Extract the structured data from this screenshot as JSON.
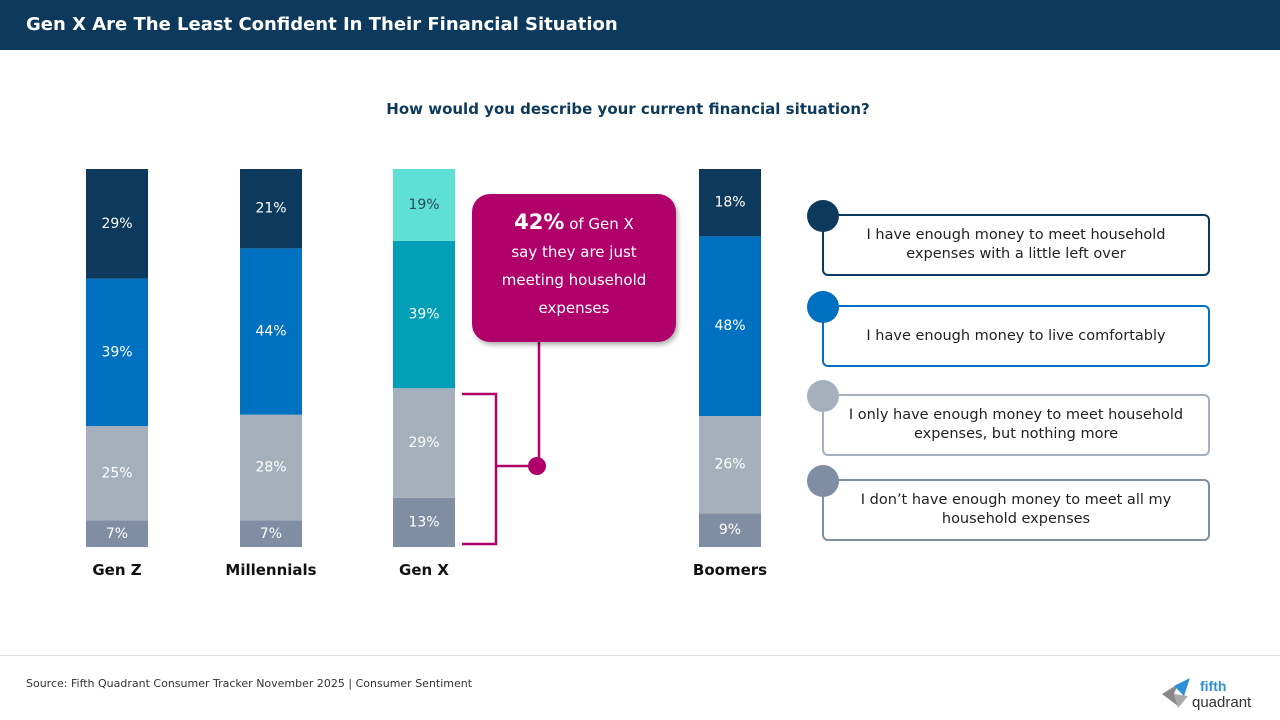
{
  "header": {
    "title": "Gen X Are The Least Confident In Their Financial Situation"
  },
  "chart_data": {
    "type": "bar",
    "stacked": true,
    "title": "How would you describe your current financial situation?",
    "categories": [
      "Gen Z",
      "Millennials",
      "Gen X",
      "Boomers"
    ],
    "series": [
      {
        "name": "I don’t have enough money to meet all my household expenses",
        "values": [
          7,
          7,
          13,
          9
        ],
        "color": "#7f8ea3"
      },
      {
        "name": "I only have enough money to meet household expenses, but nothing more",
        "values": [
          25,
          28,
          29,
          26
        ],
        "color": "#a6b0bc"
      },
      {
        "name": "I have enough money to live comfortably",
        "values": [
          39,
          44,
          39,
          48
        ],
        "color": "#0070c0"
      },
      {
        "name": "I have enough money to meet household expenses with a little left over",
        "values": [
          29,
          21,
          19,
          18
        ],
        "color": "#0d3a5c"
      }
    ],
    "genx_highlight_colors": {
      "live_comfortably": "#009fb5",
      "little_left_over": "#5fe0d4"
    },
    "legend_placement": "right",
    "grid": false
  },
  "callout": {
    "pct": "42%",
    "line1": "of Gen X",
    "line2": "say they are just",
    "line3": "meeting household",
    "line4": "expenses",
    "color": "#b0006a"
  },
  "legend": [
    {
      "label": "I have enough money to meet household expenses with a little left over",
      "color": "#0d3a5c"
    },
    {
      "label": "I have enough money to live comfortably",
      "color": "#0070c0"
    },
    {
      "label": "I only have enough money to meet household expenses, but nothing more",
      "color": "#a6b0bc"
    },
    {
      "label": "I don’t have enough money to meet all my household expenses",
      "color": "#7f8ea3"
    }
  ],
  "footer": {
    "source": "Source: Fifth Quadrant Consumer Tracker November 2025 | Consumer Sentiment",
    "logo_text": "fifth quadrant"
  }
}
